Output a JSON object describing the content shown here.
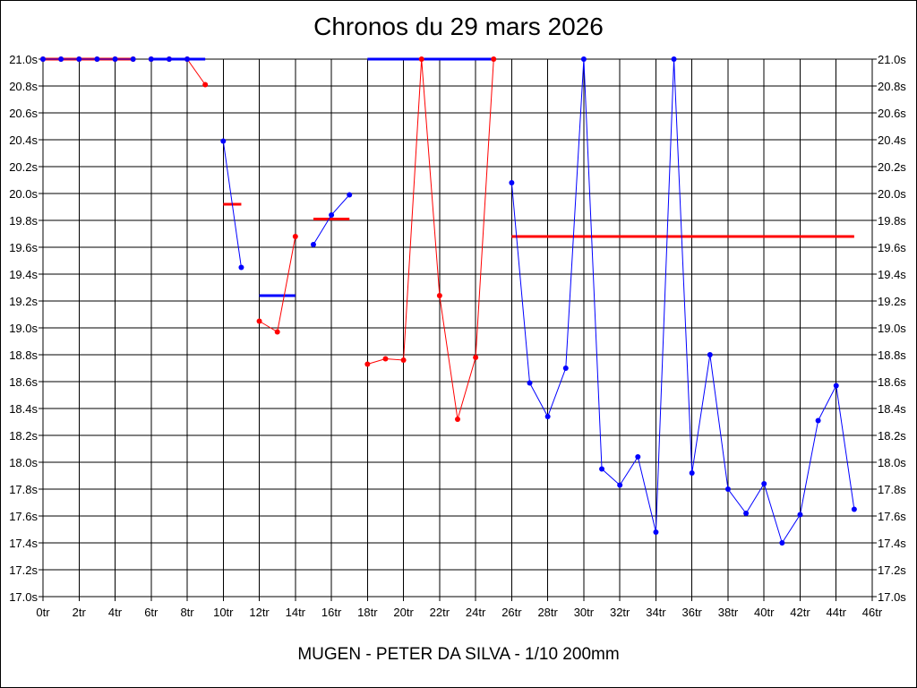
{
  "title": "Chronos du 29 mars 2026",
  "footer": "MUGEN - PETER DA SILVA - 1/10 200mm",
  "chart_data": {
    "type": "line",
    "title": "Chronos du 29 mars 2026",
    "xlabel": "",
    "ylabel": "",
    "xlim": [
      0,
      46
    ],
    "ylim": [
      17.0,
      21.0
    ],
    "x_ticks": [
      "0tr",
      "2tr",
      "4tr",
      "6tr",
      "8tr",
      "10tr",
      "12tr",
      "14tr",
      "16tr",
      "18tr",
      "20tr",
      "22tr",
      "24tr",
      "26tr",
      "28tr",
      "30tr",
      "32tr",
      "34tr",
      "36tr",
      "38tr",
      "40tr",
      "42tr",
      "44tr",
      "46tr"
    ],
    "y_ticks": [
      "17.0s",
      "17.2s",
      "17.4s",
      "17.6s",
      "17.8s",
      "18.0s",
      "18.2s",
      "18.4s",
      "18.6s",
      "18.8s",
      "19.0s",
      "19.2s",
      "19.4s",
      "19.6s",
      "19.8s",
      "20.0s",
      "20.2s",
      "20.4s",
      "20.6s",
      "20.8s",
      "21.0s"
    ],
    "grid": true,
    "colors": {
      "red": "#ff0000",
      "blue": "#0000ff"
    },
    "segments": [
      {
        "color": "red",
        "points": [
          [
            0,
            21.0
          ],
          [
            1,
            21.0
          ],
          [
            2,
            21.0
          ],
          [
            3,
            21.0
          ],
          [
            4,
            21.0
          ],
          [
            5,
            21.0
          ]
        ],
        "average": 21.0,
        "avg_range": [
          0,
          5
        ]
      },
      {
        "color": "blue",
        "points": [
          [
            0,
            21.0
          ],
          [
            1,
            21.0
          ],
          [
            2,
            21.0
          ],
          [
            3,
            21.0
          ],
          [
            4,
            21.0
          ],
          [
            5,
            21.0
          ]
        ],
        "average": null
      },
      {
        "color": "red",
        "points": [
          [
            6,
            21.0
          ],
          [
            7,
            21.0
          ],
          [
            8,
            21.0
          ],
          [
            9,
            20.81
          ]
        ],
        "average": null
      },
      {
        "color": "blue",
        "points": [
          [
            6,
            21.0
          ],
          [
            7,
            21.0
          ],
          [
            8,
            21.0
          ]
        ],
        "average": 21.0,
        "avg_range": [
          6,
          9
        ]
      },
      {
        "color": "blue",
        "points": [
          [
            10,
            20.39
          ],
          [
            11,
            19.45
          ]
        ],
        "average": null
      },
      {
        "color": "red",
        "points": [],
        "average": 19.92,
        "avg_range": [
          10,
          11
        ]
      },
      {
        "color": "red",
        "points": [
          [
            12,
            19.05
          ],
          [
            13,
            18.97
          ],
          [
            14,
            19.68
          ]
        ],
        "average": null
      },
      {
        "color": "blue",
        "points": [],
        "average": 19.24,
        "avg_range": [
          12,
          14
        ]
      },
      {
        "color": "blue",
        "points": [
          [
            15,
            19.62
          ],
          [
            16,
            19.84
          ],
          [
            17,
            19.99
          ]
        ],
        "average": null
      },
      {
        "color": "red",
        "points": [],
        "average": 19.81,
        "avg_range": [
          15,
          17
        ]
      },
      {
        "color": "red",
        "points": [
          [
            18,
            18.73
          ],
          [
            19,
            18.77
          ],
          [
            20,
            18.76
          ],
          [
            21,
            21.0
          ],
          [
            22,
            19.24
          ],
          [
            23,
            18.32
          ],
          [
            24,
            18.78
          ],
          [
            25,
            21.0
          ]
        ],
        "average": null
      },
      {
        "color": "blue",
        "points": [],
        "average": 21.0,
        "avg_range": [
          18,
          25
        ]
      },
      {
        "color": "blue",
        "points": [
          [
            26,
            20.08
          ],
          [
            27,
            18.59
          ],
          [
            28,
            18.34
          ],
          [
            29,
            18.7
          ],
          [
            30,
            21.0
          ],
          [
            31,
            17.95
          ],
          [
            32,
            17.83
          ],
          [
            33,
            18.04
          ],
          [
            34,
            17.48
          ],
          [
            35,
            21.0
          ],
          [
            36,
            17.92
          ],
          [
            37,
            18.8
          ],
          [
            38,
            17.8
          ],
          [
            39,
            17.62
          ],
          [
            40,
            17.84
          ],
          [
            41,
            17.4
          ],
          [
            42,
            17.61
          ],
          [
            43,
            18.31
          ],
          [
            44,
            18.57
          ],
          [
            45,
            17.65
          ]
        ],
        "average": null
      },
      {
        "color": "red",
        "points": [],
        "average": 19.68,
        "avg_range": [
          26,
          45
        ]
      }
    ]
  }
}
